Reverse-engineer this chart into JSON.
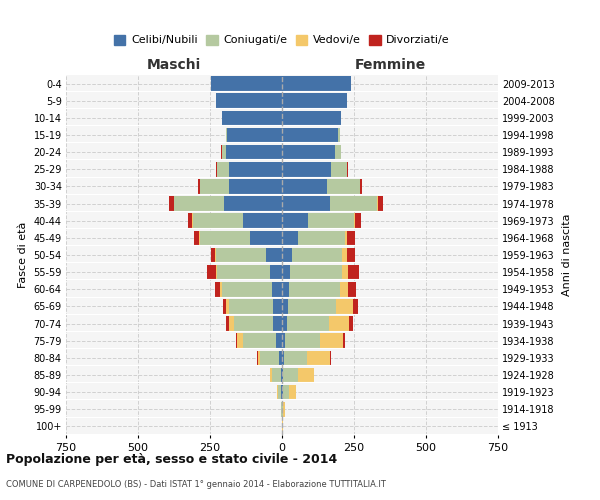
{
  "age_groups": [
    "100+",
    "95-99",
    "90-94",
    "85-89",
    "80-84",
    "75-79",
    "70-74",
    "65-69",
    "60-64",
    "55-59",
    "50-54",
    "45-49",
    "40-44",
    "35-39",
    "30-34",
    "25-29",
    "20-24",
    "15-19",
    "10-14",
    "5-9",
    "0-4"
  ],
  "birth_years": [
    "≤ 1913",
    "1914-1918",
    "1919-1923",
    "1924-1928",
    "1929-1933",
    "1934-1938",
    "1939-1943",
    "1944-1948",
    "1949-1953",
    "1954-1958",
    "1959-1963",
    "1964-1968",
    "1969-1973",
    "1974-1978",
    "1979-1983",
    "1984-1988",
    "1989-1993",
    "1994-1998",
    "1999-2003",
    "2004-2008",
    "2009-2013"
  ],
  "males": {
    "celibe": [
      0,
      1,
      3,
      5,
      10,
      20,
      30,
      30,
      35,
      40,
      55,
      110,
      135,
      200,
      185,
      185,
      195,
      190,
      210,
      230,
      245
    ],
    "coniugato": [
      0,
      2,
      12,
      30,
      65,
      115,
      135,
      155,
      175,
      185,
      175,
      175,
      175,
      175,
      100,
      40,
      15,
      5,
      0,
      0,
      0
    ],
    "vedovo": [
      0,
      0,
      1,
      5,
      10,
      20,
      20,
      10,
      5,
      5,
      3,
      2,
      1,
      1,
      1,
      1,
      0,
      0,
      0,
      0,
      0
    ],
    "divorziato": [
      0,
      0,
      0,
      0,
      2,
      5,
      8,
      10,
      18,
      30,
      15,
      20,
      15,
      15,
      5,
      2,
      1,
      0,
      0,
      0,
      0
    ]
  },
  "females": {
    "nubile": [
      0,
      1,
      3,
      5,
      8,
      12,
      18,
      22,
      25,
      28,
      35,
      55,
      90,
      165,
      155,
      170,
      185,
      195,
      205,
      225,
      240
    ],
    "coniugata": [
      0,
      3,
      20,
      50,
      80,
      120,
      145,
      165,
      175,
      180,
      175,
      165,
      160,
      165,
      115,
      55,
      20,
      5,
      0,
      0,
      0
    ],
    "vedova": [
      2,
      5,
      25,
      55,
      80,
      80,
      70,
      60,
      30,
      20,
      15,
      5,
      3,
      2,
      1,
      1,
      0,
      0,
      0,
      0,
      0
    ],
    "divorziata": [
      0,
      0,
      0,
      2,
      3,
      8,
      12,
      18,
      28,
      38,
      30,
      28,
      22,
      18,
      8,
      2,
      1,
      0,
      0,
      0,
      0
    ]
  },
  "colors": {
    "celibe": "#4472a8",
    "coniugato": "#b5c9a0",
    "vedovo": "#f4c86a",
    "divorziato": "#c0231e"
  },
  "xlim": 750,
  "title": "Popolazione per età, sesso e stato civile - 2014",
  "subtitle": "COMUNE DI CARPENEDOLO (BS) - Dati ISTAT 1° gennaio 2014 - Elaborazione TUTTITALIA.IT",
  "ylabel": "Fasce di età",
  "ylabel_right": "Anni di nascita",
  "xlabel_left": "Maschi",
  "xlabel_right": "Femmine",
  "legend_labels": [
    "Celibi/Nubili",
    "Coniugati/e",
    "Vedovi/e",
    "Divorziati/e"
  ],
  "bg_color": "#f5f5f5",
  "grid_color": "#cccccc"
}
